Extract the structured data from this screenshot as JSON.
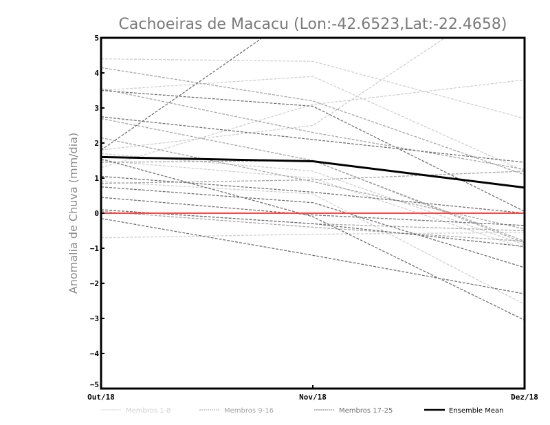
{
  "chart_data": {
    "type": "line",
    "title": "Cachoeiras de Macacu (Lon:-42.6523,Lat:-22.4658)",
    "xlabel": "",
    "ylabel": "Anomalia de Chuva (mm/dia)",
    "x": [
      "Out/18",
      "Nov/18",
      "Dez/18"
    ],
    "ylim": [
      -5,
      5
    ],
    "yticks": [
      -5,
      -4,
      -3,
      -2,
      -1,
      0,
      1,
      2,
      3,
      4,
      5
    ],
    "grid": false,
    "legend_position": "bottom",
    "reference_line": {
      "value": 0,
      "color": "#ff4444"
    },
    "groups": [
      {
        "name": "Membros 1-8",
        "color": "#cfcfcf",
        "series": [
          [
            4.4,
            4.33,
            2.7
          ],
          [
            3.5,
            3.9,
            1.2
          ],
          [
            1.3,
            3.1,
            3.8
          ],
          [
            1.8,
            2.5,
            6.5
          ],
          [
            1.7,
            1.2,
            -0.9
          ],
          [
            0.9,
            0.55,
            -2.6
          ],
          [
            -0.7,
            -0.6,
            -0.55
          ],
          [
            1.5,
            1.0,
            -1.0
          ]
        ]
      },
      {
        "name": "Membros 9-16",
        "color": "#a5a5a5",
        "series": [
          [
            2.15,
            0.9,
            -0.45
          ],
          [
            3.55,
            2.3,
            1.25
          ],
          [
            4.15,
            3.2,
            1.1
          ],
          [
            1.45,
            1.5,
            -0.8
          ],
          [
            0.85,
            0.95,
            1.2
          ],
          [
            0.1,
            -0.3,
            -0.5
          ],
          [
            2.7,
            1.5,
            -0.85
          ],
          [
            0.05,
            -0.4,
            -0.8
          ]
        ]
      },
      {
        "name": "Membros 17-25",
        "color": "#707070",
        "series": [
          [
            1.8,
            6.0,
            9.0
          ],
          [
            3.5,
            3.05,
            0.05
          ],
          [
            2.75,
            2.1,
            1.45
          ],
          [
            1.05,
            0.6,
            0.0
          ],
          [
            0.75,
            0.3,
            -1.55
          ],
          [
            -0.15,
            -1.2,
            -2.3
          ],
          [
            1.55,
            -0.1,
            -3.05
          ],
          [
            0.45,
            -0.05,
            -0.35
          ],
          [
            0.1,
            -0.3,
            -0.95
          ]
        ]
      }
    ],
    "ensemble_mean": {
      "name": "Ensemble Mean",
      "color": "#000000",
      "values": [
        1.6,
        1.48,
        0.73
      ]
    }
  }
}
